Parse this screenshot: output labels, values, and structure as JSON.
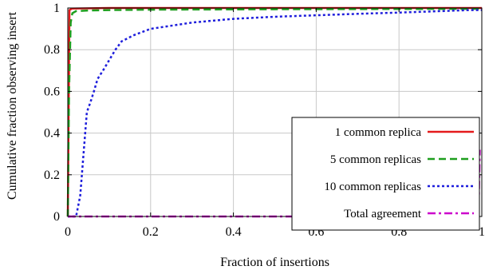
{
  "chart_data": {
    "type": "line",
    "xlabel": "Fraction of insertions",
    "ylabel": "Cumulative fraction observing insert",
    "xlim": [
      0,
      1
    ],
    "ylim": [
      0,
      1
    ],
    "x_ticks": [
      "0",
      "0.2",
      "0.4",
      "0.6",
      "0.8",
      "1"
    ],
    "y_ticks": [
      "0",
      "0.2",
      "0.4",
      "0.6",
      "0.8",
      "1"
    ],
    "grid": true,
    "legend_position": "bottom-right",
    "series": [
      {
        "name": "1 common replica",
        "color": "#e41a1c",
        "dash": "solid",
        "points": [
          [
            0,
            0
          ],
          [
            0.004,
            0.99
          ],
          [
            0.01,
            0.997
          ],
          [
            0.1,
            1.0
          ],
          [
            1.0,
            1.0
          ]
        ]
      },
      {
        "name": "5 common replicas",
        "color": "#1e9e1e",
        "dash": "dashed",
        "points": [
          [
            0,
            0
          ],
          [
            0.003,
            0.6
          ],
          [
            0.007,
            0.93
          ],
          [
            0.011,
            0.975
          ],
          [
            0.02,
            0.985
          ],
          [
            0.05,
            0.988
          ],
          [
            0.1,
            0.99
          ],
          [
            0.2,
            0.992
          ],
          [
            0.5,
            0.994
          ],
          [
            1.0,
            0.996
          ]
        ]
      },
      {
        "name": "10 common replicas",
        "color": "#1f1fdc",
        "dash": "dotted",
        "points": [
          [
            0,
            0
          ],
          [
            0.02,
            0.0
          ],
          [
            0.03,
            0.1
          ],
          [
            0.036,
            0.25
          ],
          [
            0.042,
            0.4
          ],
          [
            0.046,
            0.5
          ],
          [
            0.055,
            0.55
          ],
          [
            0.063,
            0.6
          ],
          [
            0.072,
            0.66
          ],
          [
            0.085,
            0.7
          ],
          [
            0.1,
            0.75
          ],
          [
            0.115,
            0.8
          ],
          [
            0.13,
            0.84
          ],
          [
            0.16,
            0.87
          ],
          [
            0.2,
            0.9
          ],
          [
            0.25,
            0.915
          ],
          [
            0.3,
            0.93
          ],
          [
            0.4,
            0.948
          ],
          [
            0.5,
            0.958
          ],
          [
            0.6,
            0.965
          ],
          [
            0.7,
            0.972
          ],
          [
            0.8,
            0.978
          ],
          [
            0.9,
            0.985
          ],
          [
            0.97,
            0.99
          ],
          [
            1.0,
            0.99
          ]
        ]
      },
      {
        "name": "Total agreement",
        "color": "#cc00cc",
        "dash": "dashdot",
        "points": [
          [
            0,
            0
          ],
          [
            0.97,
            0.0
          ],
          [
            0.99,
            0.01
          ],
          [
            0.993,
            0.1
          ],
          [
            0.995,
            0.32
          ]
        ]
      }
    ]
  }
}
